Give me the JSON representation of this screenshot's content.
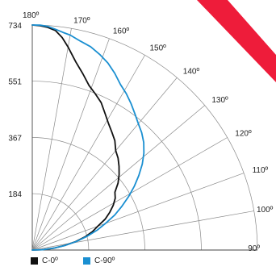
{
  "colors": {
    "brand_mark": "#ee1c3a",
    "grid": "#8a8a8a",
    "axis": "#444444"
  },
  "brand_mark": {
    "icon": "red-brand-stroke"
  },
  "chart_data": {
    "type": "line",
    "subtype": "polar-photometric",
    "angle_ticks": [
      "180º",
      "170º",
      "160º",
      "150º",
      "140º",
      "130º",
      "120º",
      "110º",
      "100º",
      "90º"
    ],
    "angle_values": [
      180,
      170,
      160,
      150,
      140,
      130,
      120,
      110,
      100,
      90
    ],
    "radial_ticks": [
      "184",
      "367",
      "551",
      "734"
    ],
    "radial_values": [
      184,
      367,
      551,
      734
    ],
    "rlim": [
      0,
      734
    ],
    "grid": true,
    "legend_position": "bottom-left",
    "series": [
      {
        "name": "C-0º",
        "color": "#111111",
        "angles": [
          180,
          178,
          176,
          174,
          172,
          170,
          167,
          164,
          161,
          158,
          155,
          152,
          149,
          146,
          143,
          140,
          137,
          134,
          131,
          128,
          125,
          122,
          119,
          116,
          113,
          110,
          107,
          104,
          101,
          98,
          95,
          92,
          90
        ],
        "values": [
          734,
          732,
          728,
          720,
          700,
          672,
          630,
          598,
          568,
          549,
          531,
          505,
          482,
          464,
          447,
          423,
          410,
          393,
          375,
          355,
          329,
          319,
          302,
          281,
          258,
          227,
          205,
          177,
          144,
          106,
          70,
          31,
          0
        ]
      },
      {
        "name": "C-90º",
        "color": "#1a8fd1",
        "angles": [
          180,
          178,
          176,
          174,
          172,
          170,
          167,
          164,
          161,
          158,
          155,
          152,
          149,
          146,
          143,
          140,
          137,
          134,
          131,
          128,
          125,
          122,
          119,
          116,
          113,
          110,
          107,
          104,
          101,
          98,
          95,
          92,
          90
        ],
        "values": [
          734,
          734,
          731,
          724,
          717,
          712,
          699,
          690,
          675,
          658,
          636,
          612,
          595,
          576,
          556,
          538,
          523,
          505,
          482,
          455,
          424,
          392,
          359,
          325,
          292,
          254,
          221,
          183,
          147,
          109,
          71,
          33,
          0
        ]
      }
    ]
  }
}
